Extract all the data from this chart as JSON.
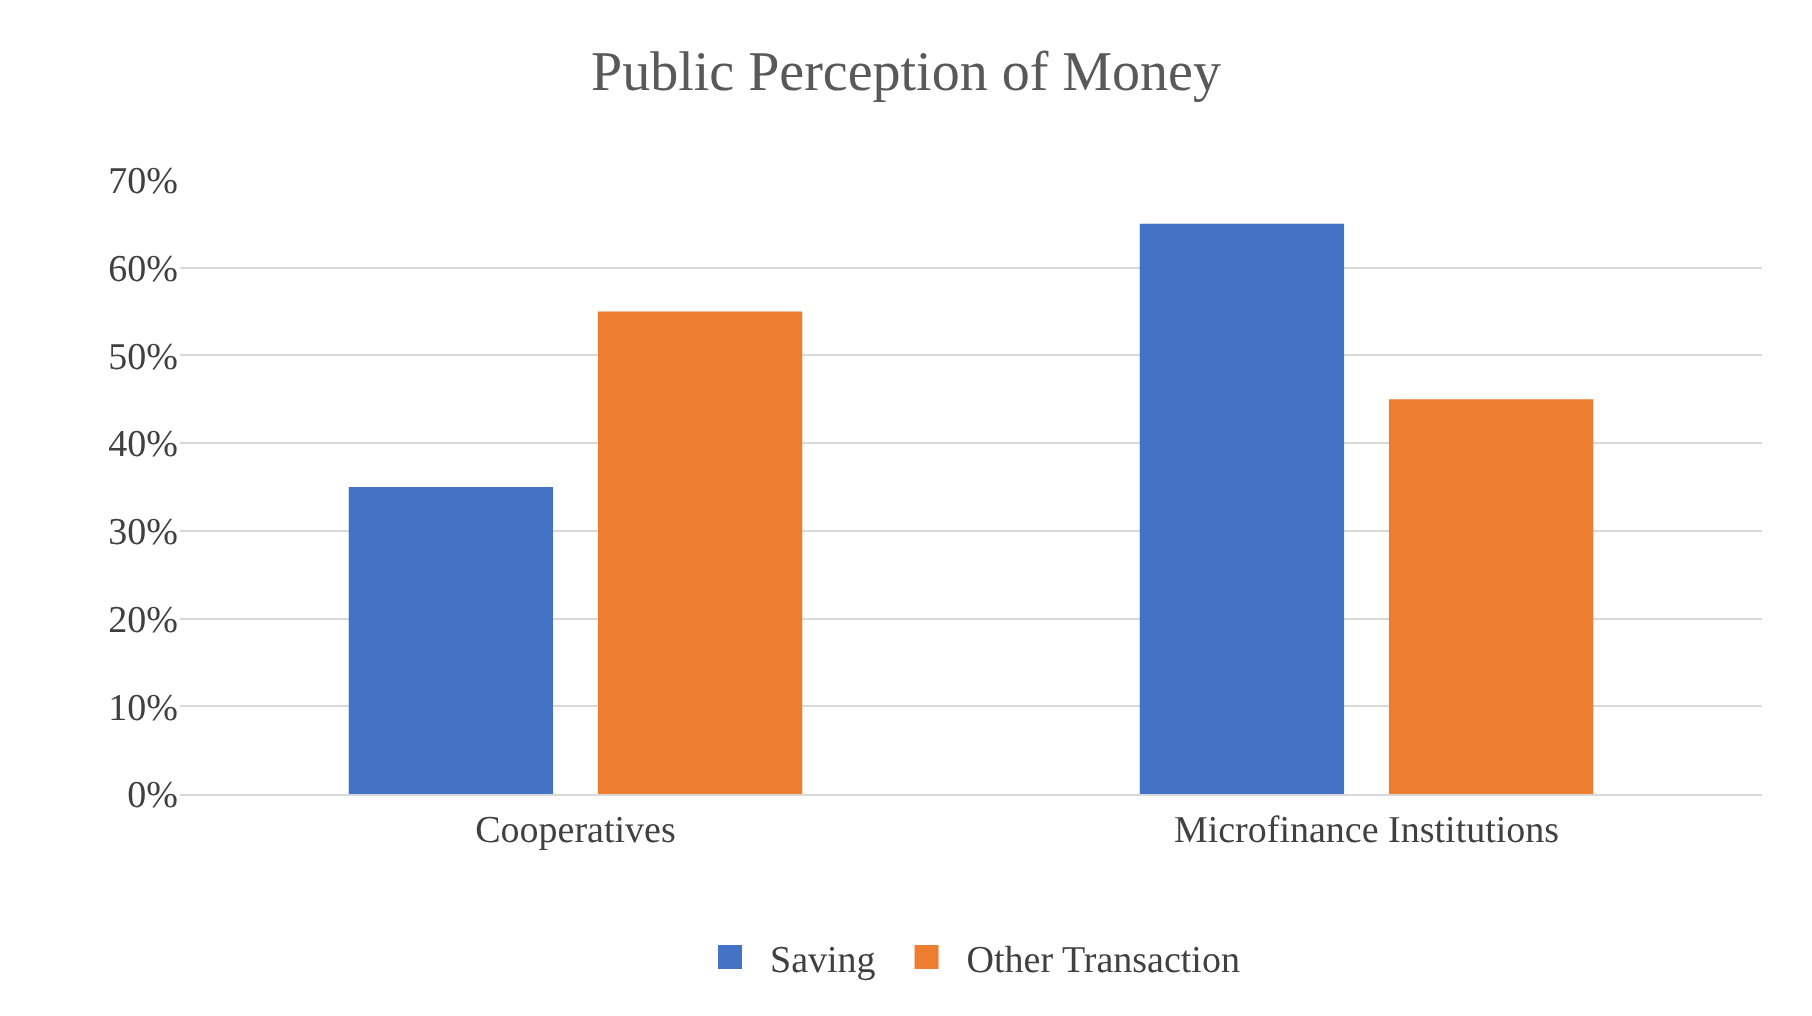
{
  "chart_data": {
    "type": "bar",
    "title": "Public Perception of Money",
    "categories": [
      "Cooperatives",
      "Microfinance Institutions"
    ],
    "series": [
      {
        "name": "Saving",
        "color": "#4472c4",
        "values": [
          35,
          65
        ]
      },
      {
        "name": "Other Transaction",
        "color": "#ed7d31",
        "values": [
          55,
          45
        ]
      }
    ],
    "ylim": [
      0,
      70
    ],
    "yticks": [
      {
        "value": 0,
        "label": "0%"
      },
      {
        "value": 10,
        "label": "10%"
      },
      {
        "value": 20,
        "label": "20%"
      },
      {
        "value": 30,
        "label": "30%"
      },
      {
        "value": 40,
        "label": "40%"
      },
      {
        "value": 50,
        "label": "50%"
      },
      {
        "value": 60,
        "label": "60%"
      },
      {
        "value": 70,
        "label": "70%"
      }
    ],
    "grid": "y",
    "legend": "bottom"
  }
}
